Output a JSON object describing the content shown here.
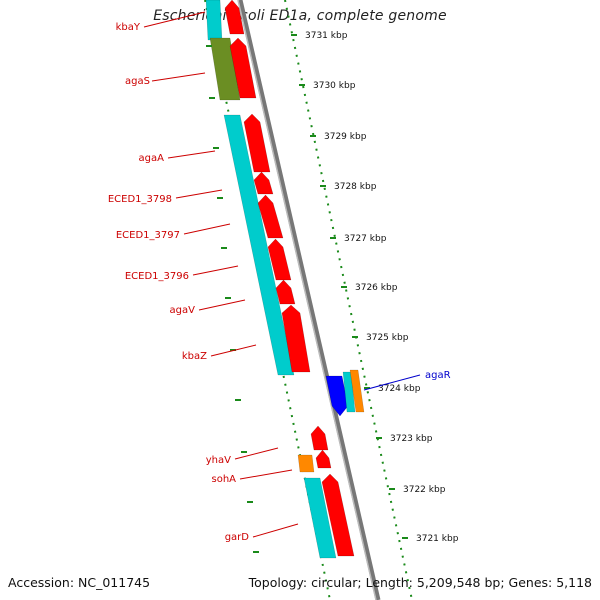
{
  "title": "Escherichia coli ED1a, complete genome",
  "footer": {
    "accession": "Accession: NC_011745",
    "summary": "Topology: circular; Length: 5,209,548 bp; Genes: 5,118"
  },
  "colors": {
    "forward_cds": "#ff0000",
    "reverse_cds": "#0000ff",
    "rna": "#ff8800",
    "orf_reading_frame": "#00cccc",
    "other_feature": "#6b8e23",
    "tick_color": "#1a8a1a",
    "label_red": "#cc0000",
    "label_blue": "#0000cc"
  },
  "scale_ticks": [
    {
      "label": "3731 kbp"
    },
    {
      "label": "3730 kbp"
    },
    {
      "label": "3729 kbp"
    },
    {
      "label": "3728 kbp"
    },
    {
      "label": "3727 kbp"
    },
    {
      "label": "3726 kbp"
    },
    {
      "label": "3725 kbp"
    },
    {
      "label": "3724 kbp"
    },
    {
      "label": "3723 kbp"
    },
    {
      "label": "3722 kbp"
    },
    {
      "label": "3721 kbp"
    }
  ],
  "gene_labels": [
    {
      "name": "kbaY",
      "color": "red"
    },
    {
      "name": "agaS",
      "color": "red"
    },
    {
      "name": "agaA",
      "color": "red"
    },
    {
      "name": "ECED1_3798",
      "color": "red"
    },
    {
      "name": "ECED1_3797",
      "color": "red"
    },
    {
      "name": "ECED1_3796",
      "color": "red"
    },
    {
      "name": "agaV",
      "color": "red"
    },
    {
      "name": "kbaZ",
      "color": "red"
    },
    {
      "name": "agaR",
      "color": "blue"
    },
    {
      "name": "yhaV",
      "color": "red"
    },
    {
      "name": "sohA",
      "color": "red"
    },
    {
      "name": "garD",
      "color": "red"
    }
  ]
}
